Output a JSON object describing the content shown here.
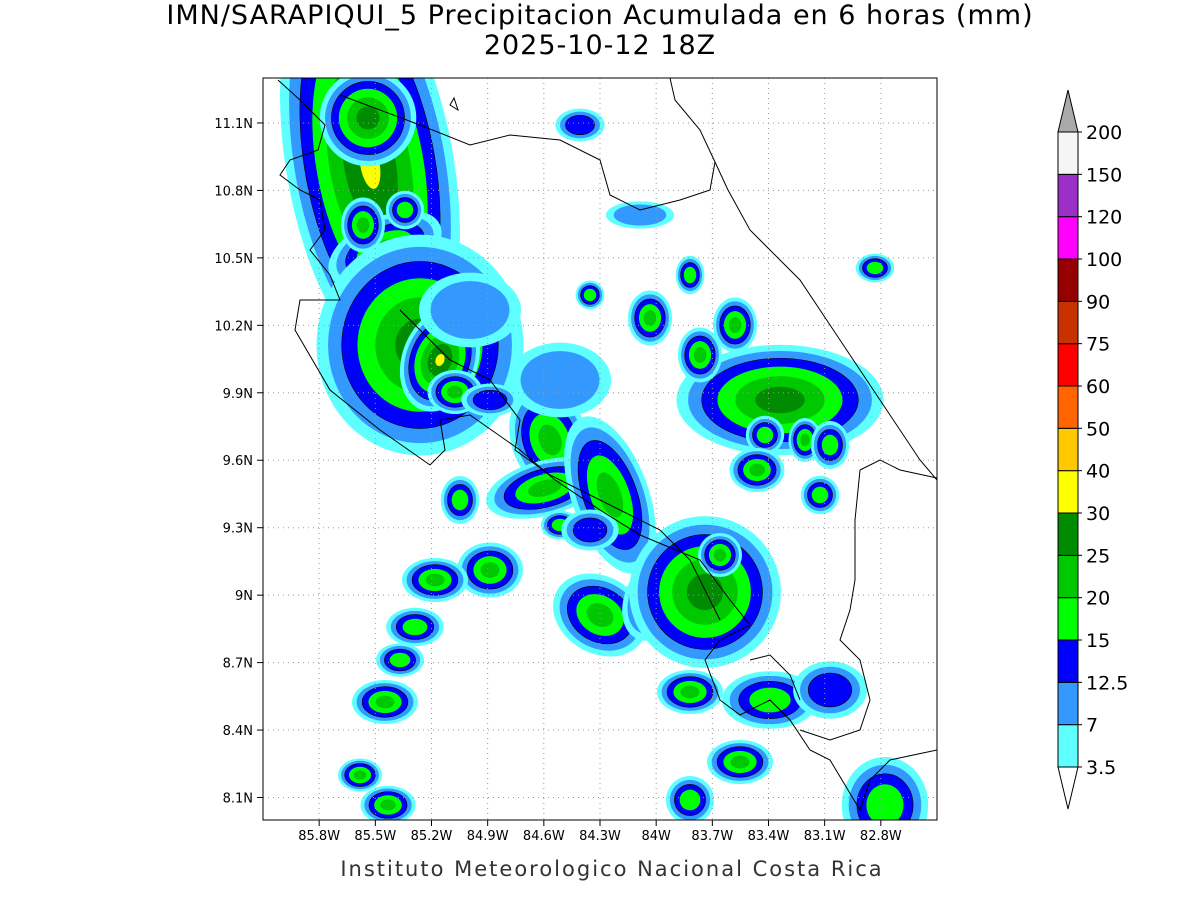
{
  "map": {
    "title": "IMN/SARAPIQUI_5 Precipitacion Acumulada en 6 horas (mm)",
    "subtitle": "2025-10-12 18Z",
    "credit": "Instituto Meteorologico Nacional Costa Rica",
    "xlim": [
      -86.1,
      -82.5
    ],
    "ylim": [
      8.0,
      11.3
    ],
    "xticks": [
      {
        "value": -85.8,
        "label": "85.8W"
      },
      {
        "value": -85.5,
        "label": "85.5W"
      },
      {
        "value": -85.2,
        "label": "85.2W"
      },
      {
        "value": -84.9,
        "label": "84.9W"
      },
      {
        "value": -84.6,
        "label": "84.6W"
      },
      {
        "value": -84.3,
        "label": "84.3W"
      },
      {
        "value": -84.0,
        "label": "84W"
      },
      {
        "value": -83.7,
        "label": "83.7W"
      },
      {
        "value": -83.4,
        "label": "83.4W"
      },
      {
        "value": -83.1,
        "label": "83.1W"
      },
      {
        "value": -82.8,
        "label": "82.8W"
      }
    ],
    "yticks": [
      {
        "value": 8.1,
        "label": "8.1N"
      },
      {
        "value": 8.4,
        "label": "8.4N"
      },
      {
        "value": 8.7,
        "label": "8.7N"
      },
      {
        "value": 9.0,
        "label": "9N"
      },
      {
        "value": 9.3,
        "label": "9.3N"
      },
      {
        "value": 9.6,
        "label": "9.6N"
      },
      {
        "value": 9.9,
        "label": "9.9N"
      },
      {
        "value": 10.2,
        "label": "10.2N"
      },
      {
        "value": 10.5,
        "label": "10.5N"
      },
      {
        "value": 10.8,
        "label": "10.8N"
      },
      {
        "value": 11.1,
        "label": "11.1N"
      }
    ],
    "grid": true,
    "legend": {
      "levels": [
        3.5,
        7,
        12.5,
        15,
        20,
        25,
        30,
        40,
        50,
        60,
        75,
        90,
        100,
        120,
        150,
        200
      ],
      "colors": [
        "#5fffff",
        "#3399ff",
        "#0000ff",
        "#00ff00",
        "#00c800",
        "#008c00",
        "#ffff00",
        "#ffc800",
        "#ff6400",
        "#ff0000",
        "#c83200",
        "#960000",
        "#ff00ff",
        "#9b30c8",
        "#f5f5f5"
      ],
      "over_color": "#aaaaaa",
      "under_color": "#ffffff"
    }
  }
}
